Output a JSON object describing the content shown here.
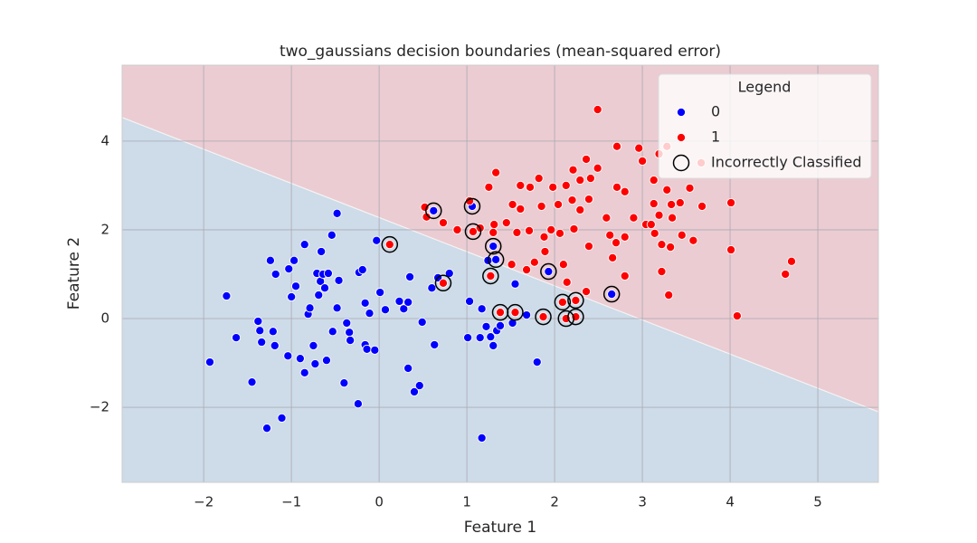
{
  "chart_data": {
    "type": "scatter",
    "title": "two_gaussians decision boundaries (mean-squared error)",
    "x_label": "Feature 1",
    "y_label": "Feature 2",
    "xlim": [
      -2.93,
      5.69
    ],
    "ylim": [
      -3.69,
      5.71
    ],
    "xticks": [
      {
        "value": -2,
        "label": "−2"
      },
      {
        "value": -1,
        "label": "−1"
      },
      0,
      1,
      2,
      3,
      4,
      5
    ],
    "yticks": [
      {
        "value": -2,
        "label": "−2"
      },
      0,
      2,
      4
    ],
    "grid": true,
    "legend_title": "Legend",
    "legend_position": "upper-right",
    "decision_boundary": {
      "x": [
        -2.93,
        5.69
      ],
      "y": [
        4.53,
        -2.1
      ],
      "colors": {
        "above": "#ebccd2",
        "below": "#cedbe8"
      }
    },
    "series": [
      {
        "name": "0",
        "color": "#0000ff",
        "x": [
          -1.93,
          -1.74,
          -1.63,
          -1.45,
          -1.38,
          -1.36,
          -1.34,
          -1.28,
          -1.24,
          -1.21,
          -1.18,
          -1.19,
          -1.11,
          -1.03,
          -1.04,
          -1.0,
          -0.97,
          -0.95,
          -0.9,
          -0.85,
          -0.85,
          -0.81,
          -0.79,
          -0.75,
          -0.73,
          -0.71,
          -0.69,
          -0.67,
          -0.66,
          -0.64,
          -0.62,
          -0.6,
          -0.58,
          -0.54,
          -0.53,
          -0.48,
          -0.48,
          -0.46,
          -0.4,
          -0.37,
          -0.34,
          -0.33,
          -0.24,
          -0.23,
          -0.19,
          -0.16,
          -0.16,
          -0.14,
          -0.11,
          -0.05,
          -0.03,
          0.01,
          0.07,
          0.23,
          0.28,
          0.33,
          0.33,
          0.35,
          0.4,
          0.46,
          0.49,
          0.6,
          0.63,
          0.67,
          0.8,
          1.01,
          1.03,
          1.15,
          1.17,
          1.17,
          1.22,
          1.24,
          1.27,
          1.3,
          1.34,
          1.38,
          1.52,
          1.55,
          1.8,
          1.68,
          0.62,
          1.06,
          1.3,
          1.33,
          1.93,
          2.65
        ],
        "y": [
          -0.98,
          0.51,
          -0.43,
          -1.43,
          -0.06,
          -0.27,
          -0.53,
          -2.47,
          1.31,
          -0.29,
          1.0,
          -0.61,
          -2.24,
          1.12,
          -0.84,
          0.49,
          1.31,
          0.73,
          -0.9,
          1.67,
          -1.22,
          0.1,
          0.24,
          -0.61,
          -1.02,
          1.02,
          0.53,
          0.84,
          1.51,
          1.0,
          0.69,
          -0.94,
          1.02,
          1.88,
          -0.29,
          0.24,
          2.37,
          0.86,
          -1.45,
          -0.1,
          -0.31,
          -0.49,
          -1.92,
          1.04,
          1.1,
          0.35,
          -0.59,
          -0.69,
          0.12,
          -0.71,
          1.76,
          0.59,
          0.2,
          0.39,
          0.22,
          0.37,
          -1.12,
          0.94,
          -1.65,
          -1.51,
          -0.08,
          0.69,
          -0.59,
          0.92,
          1.02,
          -0.43,
          0.39,
          -0.43,
          0.22,
          -2.69,
          -0.18,
          1.31,
          -0.41,
          -0.61,
          -0.27,
          -0.16,
          -0.1,
          0.78,
          -0.98,
          0.08,
          2.43,
          2.53,
          1.63,
          1.33,
          1.06,
          0.55
        ]
      },
      {
        "name": "1",
        "color": "#ff0000",
        "x": [
          2.49,
          2.71,
          2.96,
          3.28,
          3.67,
          3.19,
          3.0,
          2.36,
          2.49,
          2.21,
          2.29,
          2.41,
          2.13,
          1.82,
          1.61,
          1.33,
          1.25,
          1.72,
          1.98,
          2.2,
          2.39,
          2.71,
          2.8,
          3.28,
          3.13,
          3.13,
          3.33,
          3.54,
          3.43,
          3.68,
          4.01,
          3.34,
          3.19,
          3.04,
          2.9,
          2.59,
          2.29,
          2.04,
          1.85,
          1.61,
          1.52,
          1.45,
          1.31,
          1.15,
          1.03,
          0.89,
          0.73,
          0.52,
          0.54,
          1.57,
          1.71,
          1.96,
          2.22,
          2.06,
          2.39,
          2.63,
          2.7,
          2.8,
          3.1,
          3.14,
          3.22,
          3.32,
          3.45,
          3.58,
          4.01,
          1.88,
          1.89,
          1.77,
          1.51,
          1.68,
          2.1,
          2.14,
          2.36,
          2.66,
          2.8,
          3.22,
          3.3,
          4.63,
          4.7,
          4.08,
          1.3,
          0.12,
          0.73,
          1.07,
          1.27,
          1.38,
          1.55,
          1.87,
          2.13,
          2.24,
          2.24,
          2.09
        ],
        "y": [
          4.71,
          3.88,
          3.84,
          3.88,
          3.51,
          3.71,
          3.55,
          3.59,
          3.39,
          3.35,
          3.12,
          3.16,
          3.0,
          3.16,
          3.0,
          3.29,
          2.96,
          2.96,
          2.96,
          2.67,
          2.69,
          2.96,
          2.86,
          2.9,
          3.12,
          2.59,
          2.57,
          2.94,
          2.61,
          2.53,
          2.61,
          2.27,
          2.33,
          2.12,
          2.27,
          2.27,
          2.45,
          2.57,
          2.53,
          2.47,
          2.57,
          2.16,
          2.12,
          2.04,
          2.65,
          2.0,
          2.16,
          2.51,
          2.29,
          1.94,
          1.98,
          2.0,
          2.02,
          1.92,
          1.63,
          1.88,
          1.71,
          1.84,
          2.12,
          1.92,
          1.67,
          1.61,
          1.88,
          1.76,
          1.55,
          1.84,
          1.51,
          1.27,
          1.22,
          1.1,
          1.22,
          0.82,
          0.61,
          1.37,
          0.96,
          1.06,
          0.53,
          1.0,
          1.29,
          0.06,
          1.94,
          1.67,
          0.8,
          1.96,
          0.96,
          0.14,
          0.14,
          0.04,
          0.0,
          0.04,
          0.41,
          0.37
        ]
      }
    ],
    "incorrectly_classified": {
      "name": "Incorrectly Classified",
      "x": [
        0.62,
        1.06,
        1.3,
        1.33,
        1.93,
        2.65,
        0.12,
        0.73,
        1.07,
        1.27,
        1.38,
        1.55,
        1.87,
        2.13,
        2.24,
        2.24,
        2.09
      ],
      "y": [
        2.43,
        2.53,
        1.63,
        1.33,
        1.06,
        0.55,
        1.67,
        0.8,
        1.96,
        0.96,
        0.14,
        0.14,
        0.04,
        0.0,
        0.04,
        0.41,
        0.37
      ]
    }
  }
}
